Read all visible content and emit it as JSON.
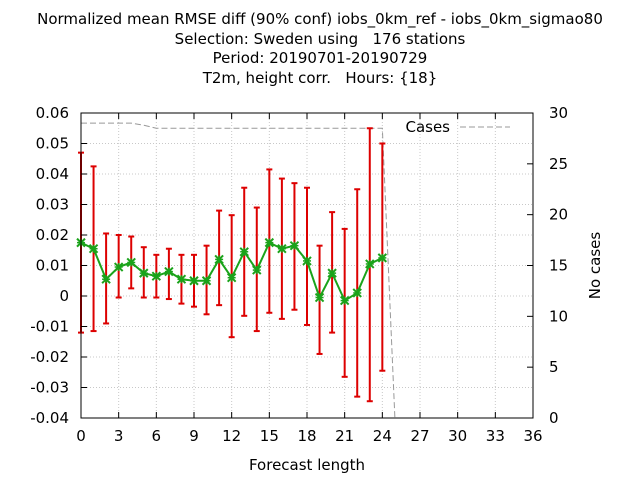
{
  "chart_data": {
    "type": "line",
    "title_lines": [
      "Normalized mean RMSE diff (90% conf) iobs_0km_ref - iobs_0km_sigmao80",
      "Selection: Sweden using   176 stations",
      "Period: 20190701-20190729",
      "T2m, height corr.   Hours: {18}"
    ],
    "xlabel": "Forecast length",
    "ylabel": "",
    "y2label": "No cases",
    "xlim": [
      0,
      36
    ],
    "ylim": [
      -0.04,
      0.06
    ],
    "y2lim": [
      0,
      30
    ],
    "xticks": [
      "0",
      "3",
      "6",
      "9",
      "12",
      "15",
      "18",
      "21",
      "24",
      "27",
      "30",
      "33",
      "36"
    ],
    "yticks": [
      "-0.04",
      "-0.03",
      "-0.02",
      "-0.01",
      "0",
      "0.01",
      "0.02",
      "0.03",
      "0.04",
      "0.05",
      "0.06"
    ],
    "y2ticks": [
      "0",
      "5",
      "10",
      "15",
      "20",
      "25",
      "30"
    ],
    "grid": true,
    "legend": "top-right",
    "colors": {
      "series": "#1aa31a",
      "marker": "#1aa31a",
      "errorbar": "#dd0000",
      "cases": "#999999"
    },
    "series": [
      {
        "x": [
          0,
          1,
          2,
          3,
          4,
          5,
          6,
          7,
          8,
          9,
          10,
          11,
          12,
          13,
          14,
          15,
          16,
          17,
          18,
          19,
          20,
          21,
          22,
          23,
          24
        ],
        "values": [
          0.0175,
          0.0155,
          0.0055,
          0.0095,
          0.011,
          0.0075,
          0.0065,
          0.008,
          0.0055,
          0.005,
          0.005,
          0.012,
          0.006,
          0.0145,
          0.0085,
          0.0175,
          0.0155,
          0.0165,
          0.0115,
          -0.0005,
          0.0075,
          -0.0015,
          0.001,
          0.0105,
          0.0125
        ],
        "ci_low": [
          -0.012,
          -0.0115,
          -0.009,
          -0.0005,
          0.0025,
          -0.0005,
          -0.0005,
          -0.001,
          -0.0025,
          -0.0035,
          -0.006,
          -0.003,
          -0.0135,
          -0.0065,
          -0.0115,
          -0.0055,
          -0.0075,
          -0.0045,
          -0.0095,
          -0.019,
          -0.012,
          -0.0265,
          -0.033,
          -0.0345,
          -0.0245
        ],
        "ci_high": [
          0.047,
          0.0425,
          0.0205,
          0.02,
          0.0195,
          0.016,
          0.0135,
          0.0155,
          0.0135,
          0.0135,
          0.0165,
          0.028,
          0.0265,
          0.0355,
          0.029,
          0.0415,
          0.0385,
          0.037,
          0.0355,
          0.0165,
          0.0275,
          0.022,
          0.035,
          0.055,
          0.05
        ]
      },
      {
        "name": "Cases",
        "x": [
          0,
          1,
          2,
          3,
          4,
          5,
          6,
          7,
          8,
          9,
          10,
          11,
          12,
          13,
          14,
          15,
          16,
          17,
          18,
          19,
          20,
          21,
          22,
          23,
          24,
          25,
          26,
          27,
          28,
          29,
          30,
          31,
          32,
          33,
          34,
          35,
          36
        ],
        "values": [
          29,
          29,
          29,
          29,
          29,
          28.8,
          28.5,
          28.5,
          28.5,
          28.5,
          28.5,
          28.5,
          28.5,
          28.5,
          28.5,
          28.5,
          28.5,
          28.5,
          28.5,
          28.5,
          28.5,
          28.5,
          28.5,
          28.5,
          28.5,
          0,
          0,
          0,
          0,
          0,
          0,
          0,
          0,
          0,
          0,
          0,
          0
        ]
      }
    ]
  }
}
